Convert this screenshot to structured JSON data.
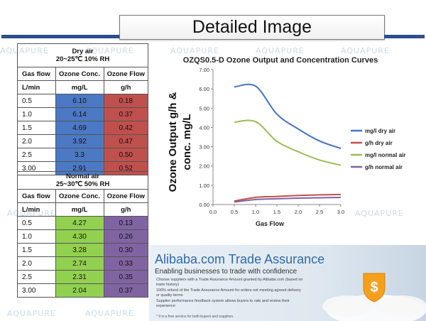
{
  "page": {
    "title": "Detailed Image",
    "watermark": "AQUAPURE"
  },
  "colors": {
    "header_bar": "#2d4f8f",
    "dry_conc": "#4b79c4",
    "dry_flow": "#c0504d",
    "normal_conc": "#92d050",
    "normal_flow": "#8064a2"
  },
  "dry_table": {
    "condition": "Dry air",
    "condition_detail": "20~25℃ 10% RH",
    "col1": "Gas flow",
    "col1_unit": "L/min",
    "col2": "Ozone Conc.",
    "col2_unit": "mg/L",
    "col3": "Ozone Flow",
    "col3_unit": "g/h",
    "rows": [
      [
        "0.5",
        "6.10",
        "0.18"
      ],
      [
        "1.0",
        "6.14",
        "0.37"
      ],
      [
        "1.5",
        "4.69",
        "0.42"
      ],
      [
        "2.0",
        "3.92",
        "0.47"
      ],
      [
        "2.5",
        "3.3",
        "0.50"
      ],
      [
        "3.00",
        "2.91",
        "0.52"
      ]
    ]
  },
  "normal_table": {
    "condition": "Normal air",
    "condition_detail": "25~30℃ 50% RH",
    "col1": "Gas flow",
    "col1_unit": "L/min",
    "col2": "Ozone Conc.",
    "col2_unit": "mg/L",
    "col3": "Ozone Flow",
    "col3_unit": "g/h",
    "rows": [
      [
        "0.5",
        "4.27",
        "0.13"
      ],
      [
        "1.0",
        "4.30",
        "0.26"
      ],
      [
        "1.5",
        "3.28",
        "0.30"
      ],
      [
        "2.0",
        "2.74",
        "0.33"
      ],
      [
        "2.5",
        "2.31",
        "0.35"
      ],
      [
        "3.00",
        "2.04",
        "0.37"
      ]
    ]
  },
  "chart_data": {
    "type": "line",
    "title": "OZQS0.5-D Ozone Output and Concentration Curves",
    "xlabel": "Gas Flow",
    "ylabel": "Ozone Output g/h & conc. mg/L",
    "xlim": [
      0.0,
      3.0
    ],
    "ylim": [
      0.0,
      7.0
    ],
    "xticks": [
      "0.0",
      "0.5",
      "1.0",
      "1.5",
      "2.0",
      "2.5",
      "3.0"
    ],
    "yticks": [
      "0.00",
      "1.00",
      "2.00",
      "3.00",
      "4.00",
      "5.00",
      "6.00",
      "7.00"
    ],
    "grid": false,
    "legend": "right",
    "x": [
      0.5,
      1.0,
      1.5,
      2.0,
      2.5,
      3.0
    ],
    "series": [
      {
        "name": "mg/l dry air",
        "color": "#4472c4",
        "values": [
          6.1,
          6.14,
          4.69,
          3.92,
          3.3,
          2.91
        ]
      },
      {
        "name": "g/h dry air",
        "color": "#c0504d",
        "values": [
          0.18,
          0.37,
          0.42,
          0.47,
          0.5,
          0.52
        ]
      },
      {
        "name": "mg/l normal air",
        "color": "#9bbb59",
        "values": [
          4.27,
          4.3,
          3.28,
          2.74,
          2.31,
          2.04
        ]
      },
      {
        "name": "g/h normal air",
        "color": "#8064a2",
        "values": [
          0.13,
          0.26,
          0.3,
          0.33,
          0.35,
          0.37
        ]
      }
    ]
  },
  "banner": {
    "title": "Alibaba.com Trade Assurance",
    "subtitle": "Enabling businesses to trade with confidence",
    "points": [
      "Choose suppliers with a Trade Assurance Amount granted by Alibaba.com (based on trade history)",
      "100% refund of the Trade Assurance Amount for orders not meeting agreed delivery or quality terms",
      "Supplier performance feedback system allows buyers to rate and review their experience"
    ],
    "note": "* It is a free service for both buyers and suppliers"
  }
}
